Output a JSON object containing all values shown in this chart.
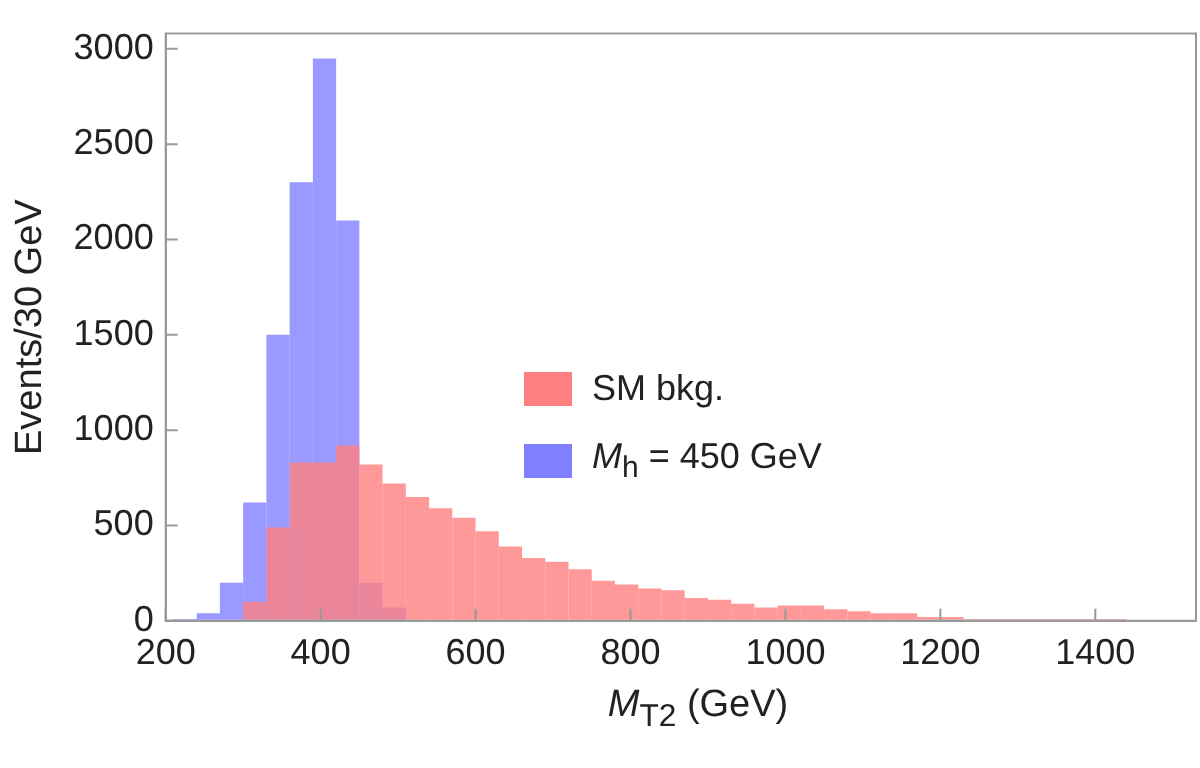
{
  "chart_data": {
    "type": "histogram",
    "xlabel": "M$_{T2}$ (GeV)",
    "ylabel": "Events/30 GeV",
    "bins": [
      210,
      240,
      270,
      300,
      330,
      360,
      390,
      420,
      450,
      480,
      510,
      540,
      570,
      600,
      630,
      660,
      690,
      720,
      750,
      780,
      810,
      840,
      870,
      900,
      930,
      960,
      990,
      1020,
      1050,
      1080,
      1110,
      1140,
      1170,
      1200,
      1230,
      1260,
      1290,
      1320,
      1350,
      1380,
      1410,
      1440,
      1470,
      1500,
      1530
    ],
    "series": [
      {
        "name": "SM bkg.",
        "color": "#ff8080",
        "values": [
          0,
          0,
          0,
          100,
          490,
          830,
          830,
          920,
          820,
          720,
          650,
          590,
          540,
          470,
          390,
          330,
          310,
          270,
          210,
          190,
          170,
          160,
          120,
          110,
          90,
          70,
          80,
          80,
          60,
          50,
          40,
          40,
          20,
          20,
          10,
          10,
          10,
          10,
          10,
          10,
          10,
          5,
          5,
          5
        ]
      },
      {
        "name": "M$_{h}$ = 450 GeV",
        "color": "#8080ff",
        "values": [
          10,
          40,
          200,
          620,
          1500,
          2300,
          2950,
          2100,
          200,
          70,
          null,
          0,
          0,
          0,
          0,
          0,
          0,
          0,
          0,
          0,
          0,
          0,
          0,
          0,
          0,
          0,
          0,
          0,
          0,
          0,
          0,
          0,
          0,
          0,
          0,
          0,
          0,
          0,
          0,
          0,
          0,
          0,
          0,
          0
        ]
      }
    ],
    "xlim": [
      200,
      1530
    ],
    "xticks": [
      200,
      400,
      600,
      800,
      1000,
      1200,
      1400
    ],
    "ylim": [
      0,
      3080
    ],
    "yticks": [
      0,
      500,
      1000,
      1500,
      2000,
      2500,
      3000
    ],
    "grid": false,
    "legend": "right"
  }
}
